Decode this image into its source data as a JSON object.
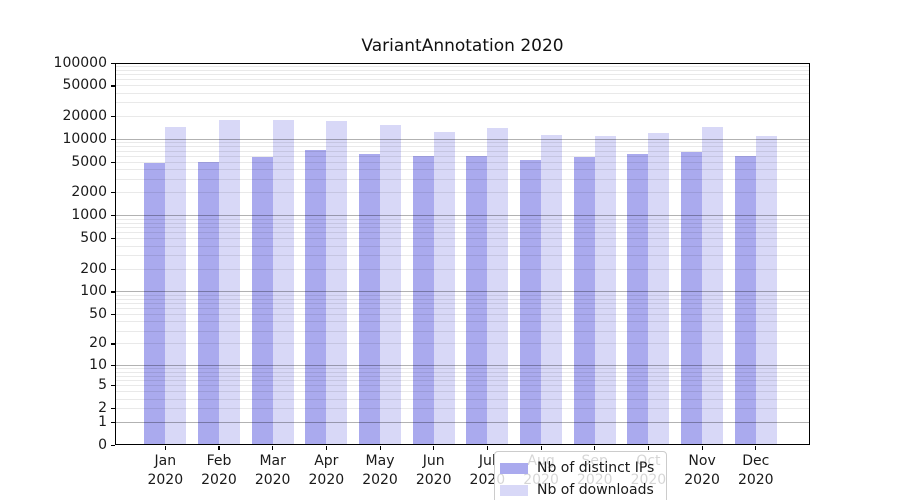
{
  "chart_data": {
    "type": "bar",
    "title": "VariantAnnotation 2020",
    "categories": [
      "Jan",
      "Feb",
      "Mar",
      "Apr",
      "May",
      "Jun",
      "Jul",
      "Aug",
      "Sep",
      "Oct",
      "Nov",
      "Dec"
    ],
    "x_year": "2020",
    "series": [
      {
        "name": "Nb of distinct IPs",
        "color": "#aaaaee",
        "values": [
          4950,
          5050,
          5900,
          7300,
          6450,
          6100,
          6000,
          5300,
          5850,
          6400,
          6800,
          6100
        ]
      },
      {
        "name": "Nb of downloads",
        "color": "#d8d8f7",
        "values": [
          14700,
          17800,
          18000,
          17300,
          15500,
          12400,
          14300,
          11500,
          11000,
          12200,
          14600,
          11100
        ]
      }
    ],
    "y_ticks": [
      0,
      1,
      2,
      5,
      10,
      20,
      50,
      100,
      200,
      500,
      1000,
      2000,
      5000,
      10000,
      20000,
      50000,
      100000
    ],
    "ylim": [
      0,
      100000
    ],
    "y_scale": "log1p",
    "grid": "horizontal: minor at 2-9 per decade, major at powers of 10, drawn over bars",
    "legend_position": "inside bottom-center",
    "xlabel": "",
    "ylabel": ""
  }
}
